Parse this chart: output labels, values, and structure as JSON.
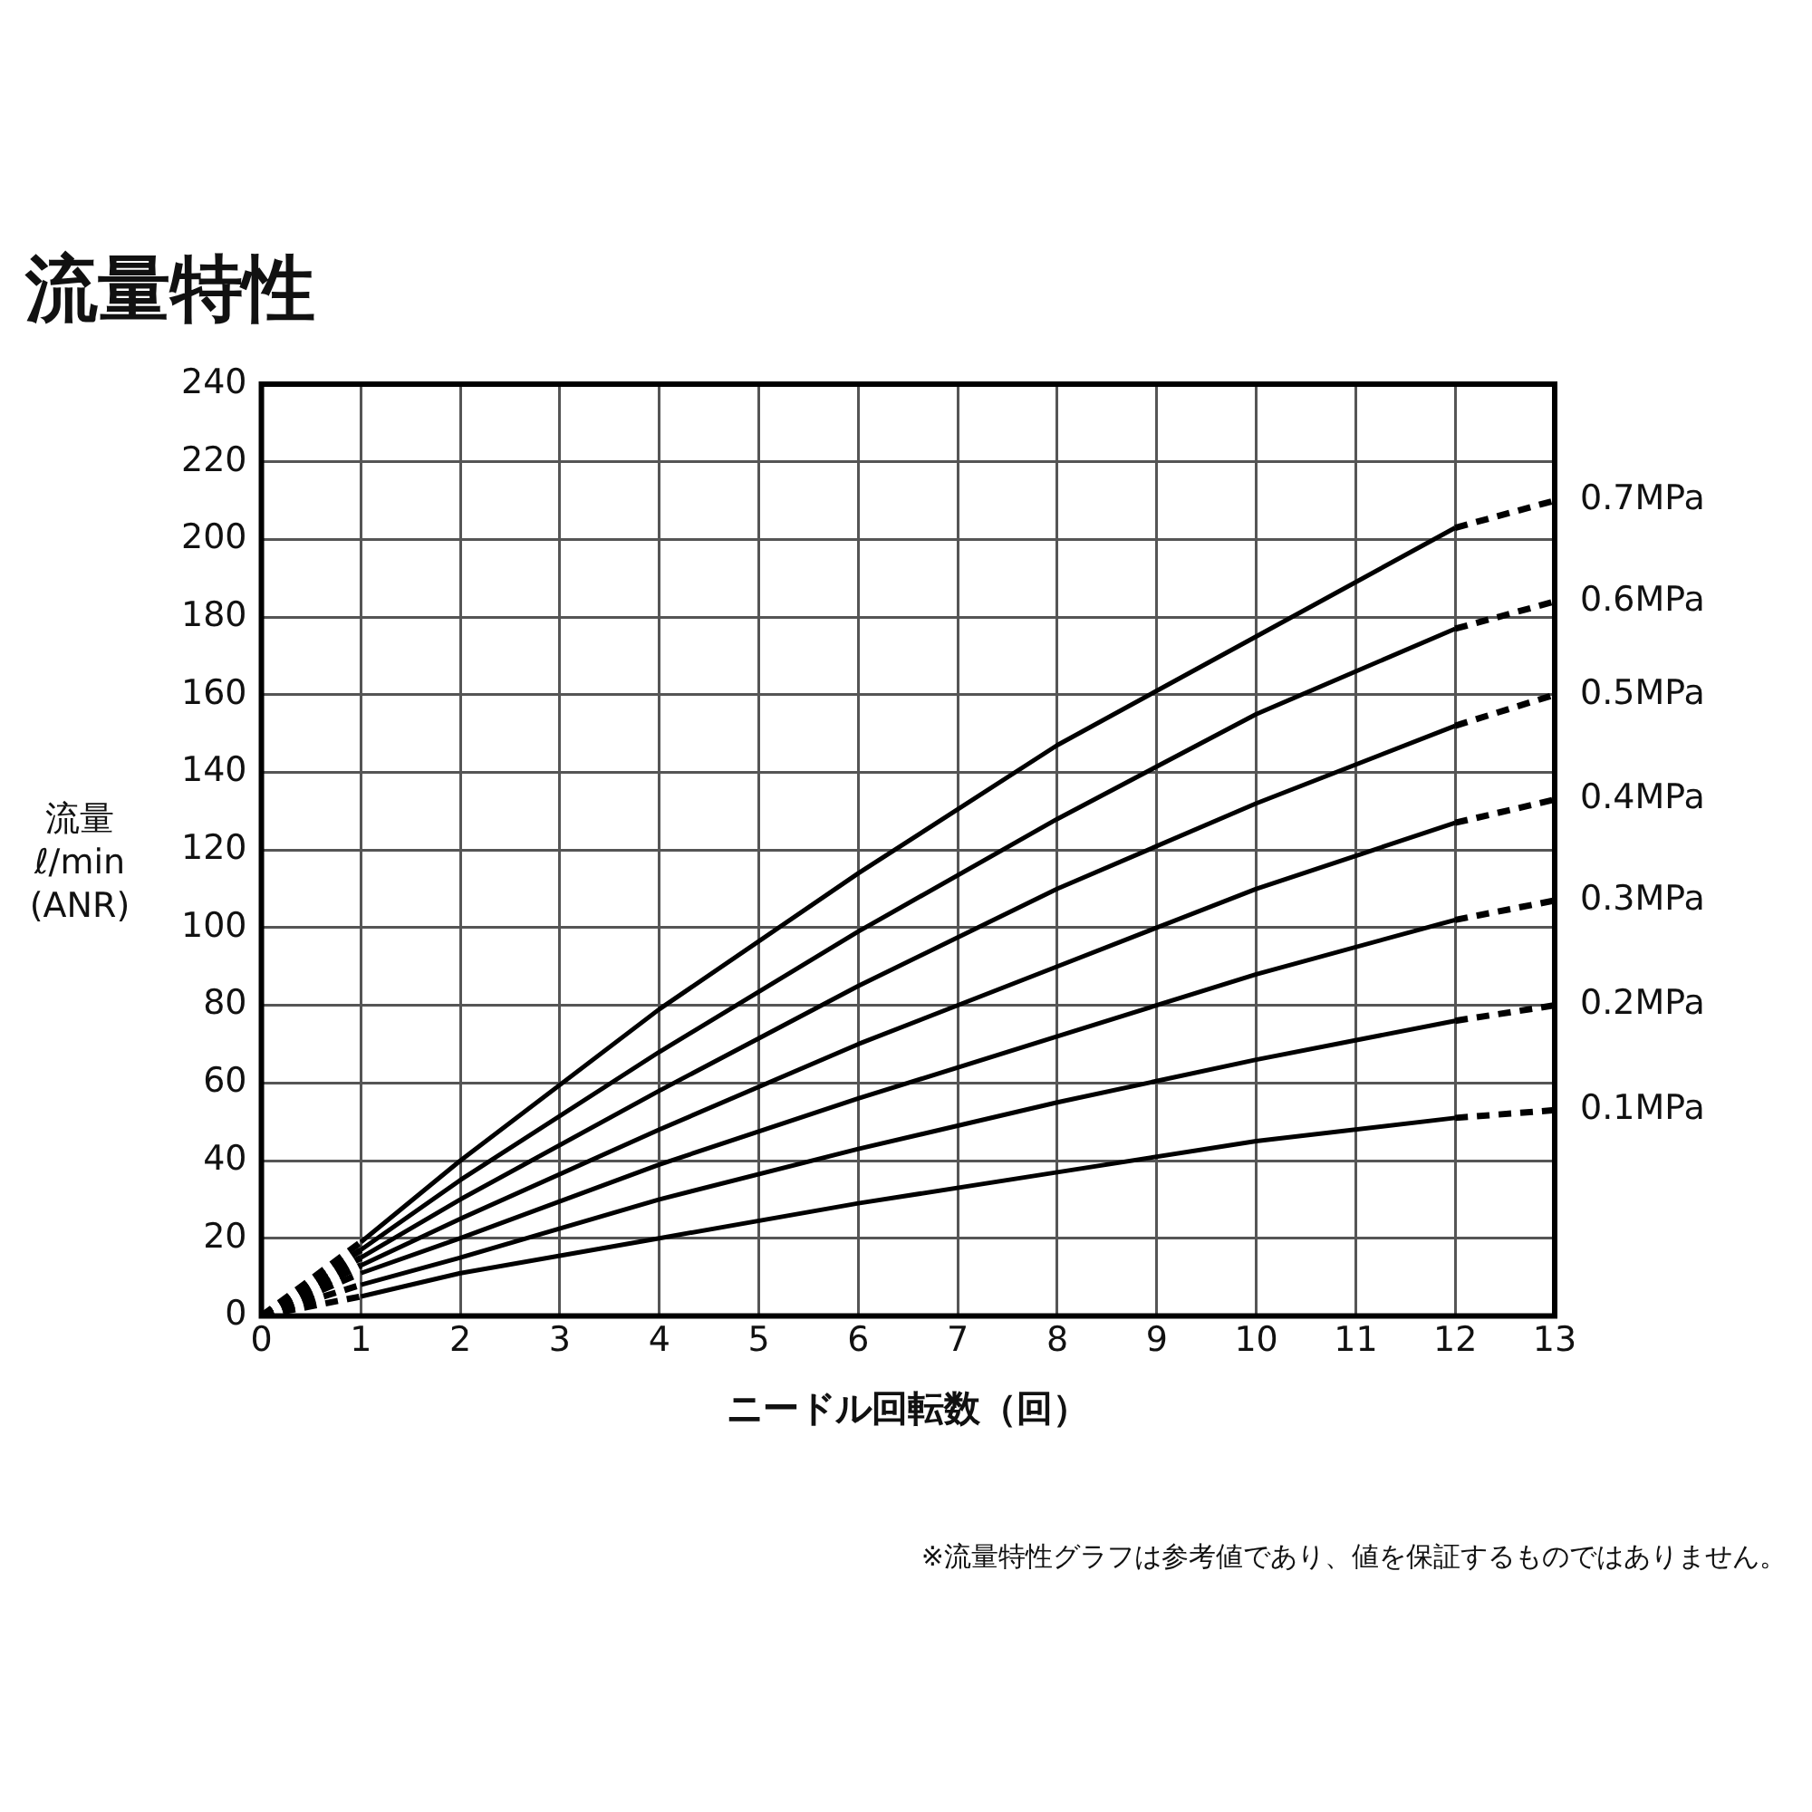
{
  "chart_data": {
    "type": "line",
    "title": "流量特性",
    "xlabel": "ニードル回転数（回）",
    "ylabel": "流量\nℓ/min\n(ANR)",
    "annotations": [
      "※流量特性グラフは参考値であり、値を保証するものではありません。"
    ],
    "xlim": [
      0,
      13
    ],
    "ylim": [
      0,
      240
    ],
    "xticks": [
      0,
      1,
      2,
      3,
      4,
      5,
      6,
      7,
      8,
      9,
      10,
      11,
      12,
      13
    ],
    "yticks": [
      0,
      20,
      40,
      60,
      80,
      100,
      120,
      140,
      160,
      180,
      200,
      220,
      240
    ],
    "grid": true,
    "legend": false,
    "marker": "none",
    "line_style": "solid",
    "series": [
      {
        "name": "0.7MPa",
        "color": "#000000",
        "x": [
          1,
          2,
          4,
          6,
          8,
          10,
          12
        ],
        "values": [
          19,
          40,
          79,
          114,
          147,
          175,
          203
        ]
      },
      {
        "color": "#000000",
        "line_style": "dashed",
        "x": [
          12,
          13
        ],
        "values": [
          203,
          210
        ]
      },
      {
        "color": "#000000",
        "line_style": "dashed",
        "x": [
          0,
          1
        ],
        "values": [
          0,
          19
        ]
      },
      {
        "name": "0.6MPa",
        "color": "#000000",
        "x": [
          1,
          2,
          4,
          6,
          8,
          10,
          12
        ],
        "values": [
          17,
          35,
          68,
          99,
          128,
          155,
          177
        ]
      },
      {
        "color": "#000000",
        "line_style": "dashed",
        "x": [
          12,
          13
        ],
        "values": [
          177,
          184
        ]
      },
      {
        "color": "#000000",
        "line_style": "dashed",
        "x": [
          0,
          1
        ],
        "values": [
          0,
          17
        ]
      },
      {
        "name": "0.5MPa",
        "color": "#000000",
        "x": [
          1,
          2,
          4,
          6,
          8,
          10,
          12
        ],
        "values": [
          15,
          30,
          58,
          85,
          110,
          132,
          152
        ]
      },
      {
        "color": "#000000",
        "line_style": "dashed",
        "x": [
          12,
          13
        ],
        "values": [
          152,
          160
        ]
      },
      {
        "color": "#000000",
        "line_style": "dashed",
        "x": [
          0,
          1
        ],
        "values": [
          0,
          15
        ]
      },
      {
        "name": "0.4MPa",
        "color": "#000000",
        "x": [
          1,
          2,
          4,
          6,
          8,
          10,
          12
        ],
        "values": [
          13,
          25,
          48,
          70,
          90,
          110,
          127
        ]
      },
      {
        "color": "#000000",
        "line_style": "dashed",
        "x": [
          12,
          13
        ],
        "values": [
          127,
          133
        ]
      },
      {
        "color": "#000000",
        "line_style": "dashed",
        "x": [
          0,
          1
        ],
        "values": [
          0,
          13
        ]
      },
      {
        "name": "0.3MPa",
        "color": "#000000",
        "x": [
          1,
          2,
          4,
          6,
          8,
          10,
          12
        ],
        "values": [
          11,
          20,
          39,
          56,
          72,
          88,
          102
        ]
      },
      {
        "color": "#000000",
        "line_style": "dashed",
        "x": [
          12,
          13
        ],
        "values": [
          102,
          107
        ]
      },
      {
        "color": "#000000",
        "line_style": "dashed",
        "x": [
          0,
          1
        ],
        "values": [
          0,
          11
        ]
      },
      {
        "name": "0.2MPa",
        "color": "#000000",
        "x": [
          1,
          2,
          4,
          6,
          8,
          10,
          12
        ],
        "values": [
          8,
          15,
          30,
          43,
          55,
          66,
          76
        ]
      },
      {
        "color": "#000000",
        "line_style": "dashed",
        "x": [
          12,
          13
        ],
        "values": [
          76,
          80
        ]
      },
      {
        "color": "#000000",
        "line_style": "dashed",
        "x": [
          0,
          1
        ],
        "values": [
          0,
          8
        ]
      },
      {
        "name": "0.1MPa",
        "color": "#000000",
        "x": [
          1,
          2,
          4,
          6,
          8,
          10,
          12
        ],
        "values": [
          5,
          11,
          20,
          29,
          37,
          45,
          51
        ]
      },
      {
        "color": "#000000",
        "line_style": "dashed",
        "x": [
          12,
          13
        ],
        "values": [
          51,
          53
        ]
      },
      {
        "color": "#000000",
        "line_style": "dashed",
        "x": [
          0,
          1
        ],
        "values": [
          0,
          5
        ]
      }
    ]
  }
}
